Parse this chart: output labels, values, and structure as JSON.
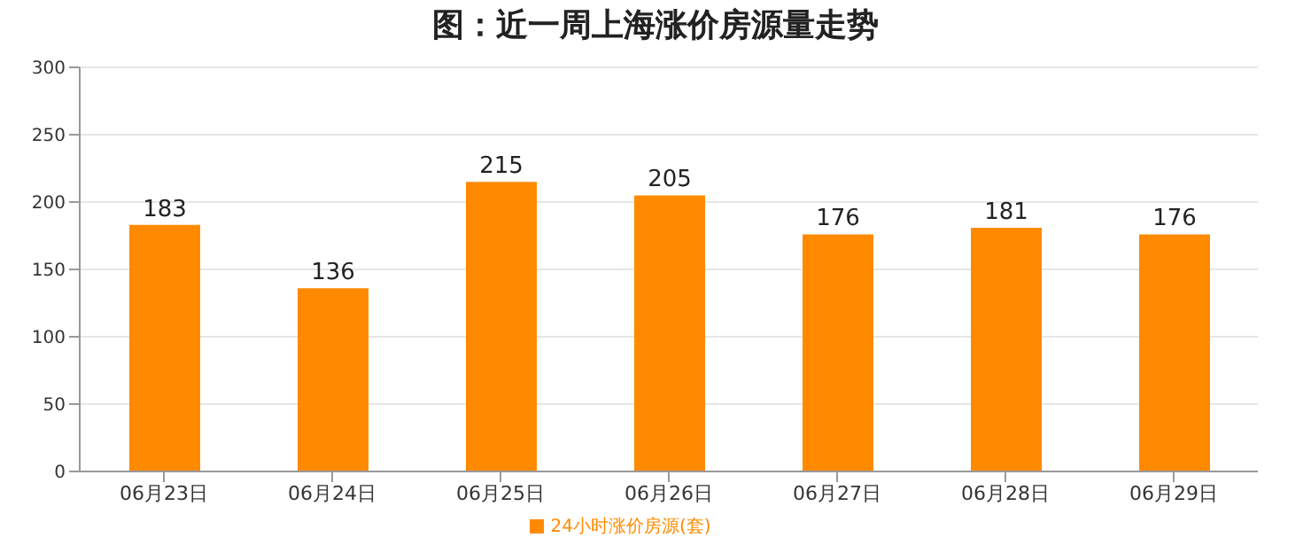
{
  "chart_data": {
    "type": "bar",
    "title": "图：近一周上海涨价房源量走势",
    "categories": [
      "06月23日",
      "06月24日",
      "06月25日",
      "06月26日",
      "06月27日",
      "06月28日",
      "06月29日"
    ],
    "series": [
      {
        "name": "24小时涨价房源(套)",
        "color": "#ff8a00",
        "values": [
          183,
          136,
          215,
          205,
          176,
          181,
          176
        ]
      }
    ],
    "ylim": [
      0,
      300
    ],
    "yticks": [
      0,
      50,
      100,
      150,
      200,
      250,
      300
    ],
    "grid": "y",
    "legend": "bottom",
    "data_labels": true
  }
}
